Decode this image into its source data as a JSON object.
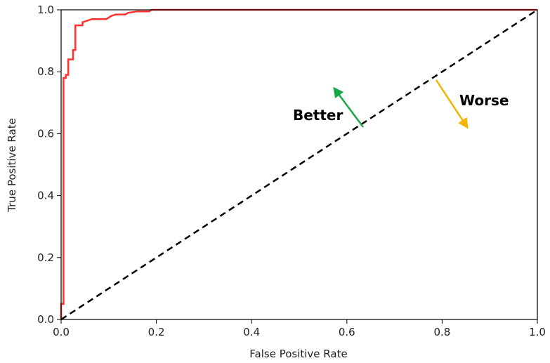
{
  "chart_data": {
    "type": "line",
    "xlabel": "False Positive Rate",
    "ylabel": "True Positive Rate",
    "xlim": [
      0,
      1
    ],
    "ylim": [
      0,
      1
    ],
    "xticks": [
      "0.0",
      "0.2",
      "0.4",
      "0.6",
      "0.8",
      "1.0"
    ],
    "yticks": [
      "0.0",
      "0.2",
      "0.4",
      "0.6",
      "0.8",
      "1.0"
    ],
    "grid": false,
    "series": [
      {
        "style": "solid",
        "color": "#ff3030",
        "x": [
          0.0,
          0.0,
          0.005,
          0.005,
          0.01,
          0.01,
          0.015,
          0.015,
          0.025,
          0.025,
          0.03,
          0.03,
          0.045,
          0.045,
          0.055,
          0.065,
          0.075,
          0.095,
          0.105,
          0.115,
          0.135,
          0.14,
          0.16,
          0.185,
          0.19,
          1.0
        ],
        "y": [
          0.0,
          0.05,
          0.05,
          0.78,
          0.78,
          0.79,
          0.79,
          0.84,
          0.84,
          0.87,
          0.87,
          0.95,
          0.95,
          0.96,
          0.965,
          0.97,
          0.97,
          0.97,
          0.98,
          0.985,
          0.985,
          0.99,
          0.995,
          0.995,
          1.0,
          1.0
        ]
      },
      {
        "style": "dashed",
        "color": "#000000",
        "x": [
          0,
          1
        ],
        "y": [
          0,
          1
        ]
      }
    ],
    "annotations": [
      {
        "text": "Better",
        "color": "#1aa84a"
      },
      {
        "text": "Worse",
        "color": "#f2b400"
      }
    ]
  }
}
